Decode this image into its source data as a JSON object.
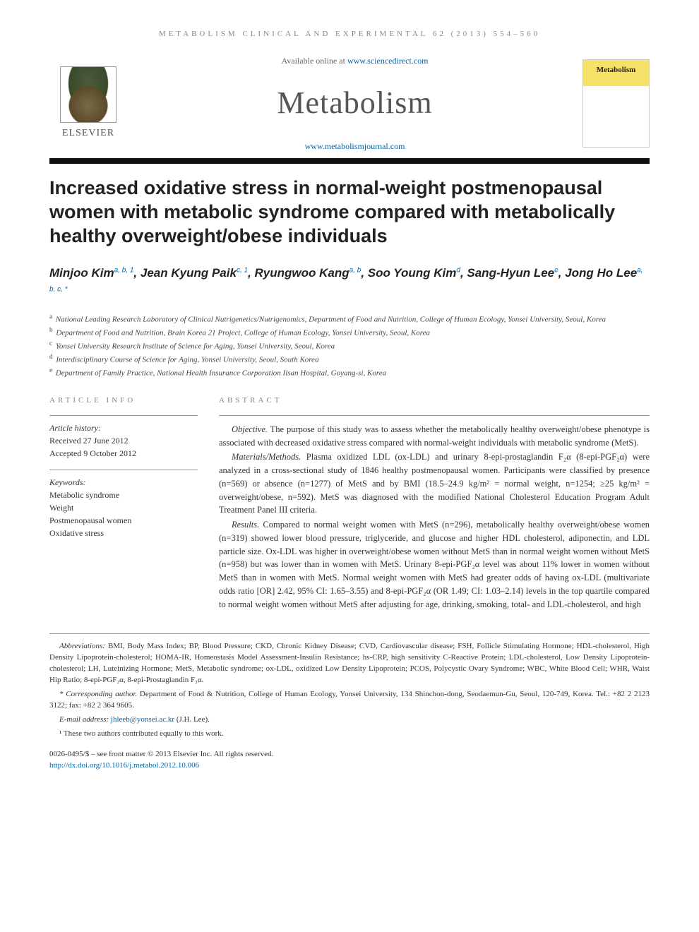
{
  "running_head": "METABOLISM CLINICAL AND EXPERIMENTAL 62 (2013) 554–560",
  "header": {
    "publisher_logo_text": "ELSEVIER",
    "available_prefix": "Available online at ",
    "available_url": "www.sciencedirect.com",
    "journal_name": "Metabolism",
    "journal_url": "www.metabolismjournal.com",
    "cover_label": "Metabolism"
  },
  "article": {
    "title": "Increased oxidative stress in normal-weight postmenopausal women with metabolic syndrome compared with metabolically healthy overweight/obese individuals",
    "authors": [
      {
        "name": "Minjoo Kim",
        "marks": "a, b, 1"
      },
      {
        "name": "Jean Kyung Paik",
        "marks": "c, 1"
      },
      {
        "name": "Ryungwoo Kang",
        "marks": "a, b"
      },
      {
        "name": "Soo Young Kim",
        "marks": "d"
      },
      {
        "name": "Sang-Hyun Lee",
        "marks": "e"
      },
      {
        "name": "Jong Ho Lee",
        "marks": "a, b, c, *"
      }
    ],
    "affiliations": [
      {
        "key": "a",
        "text": "National Leading Research Laboratory of Clinical Nutrigenetics/Nutrigenomics, Department of Food and Nutrition, College of Human Ecology, Yonsei University, Seoul, Korea"
      },
      {
        "key": "b",
        "text": "Department of Food and Nutrition, Brain Korea 21 Project, College of Human Ecology, Yonsei University, Seoul, Korea"
      },
      {
        "key": "c",
        "text": "Yonsei University Research Institute of Science for Aging, Yonsei University, Seoul, Korea"
      },
      {
        "key": "d",
        "text": "Interdisciplinary Course of Science for Aging, Yonsei University, Seoul, South Korea"
      },
      {
        "key": "e",
        "text": "Department of Family Practice, National Health Insurance Corporation Ilsan Hospital, Goyang-si, Korea"
      }
    ]
  },
  "info": {
    "heading": "ARTICLE INFO",
    "history_label": "Article history:",
    "received": "Received 27 June 2012",
    "accepted": "Accepted 9 October 2012",
    "keywords_label": "Keywords:",
    "keywords": [
      "Metabolic syndrome",
      "Weight",
      "Postmenopausal women",
      "Oxidative stress"
    ]
  },
  "abstract": {
    "heading": "ABSTRACT",
    "objective_label": "Objective.",
    "objective": "The purpose of this study was to assess whether the metabolically healthy overweight/obese phenotype is associated with decreased oxidative stress compared with normal-weight individuals with metabolic syndrome (MetS).",
    "methods_label": "Materials/Methods.",
    "methods": "Plasma oxidized LDL (ox-LDL) and urinary 8-epi-prostaglandin F₂α (8-epi-PGF₂α) were analyzed in a cross-sectional study of 1846 healthy postmenopausal women. Participants were classified by presence (n=569) or absence (n=1277) of MetS and by BMI (18.5–24.9 kg/m² = normal weight, n=1254; ≥25 kg/m² = overweight/obese, n=592). MetS was diagnosed with the modified National Cholesterol Education Program Adult Treatment Panel III criteria.",
    "results_label": "Results.",
    "results": "Compared to normal weight women with MetS (n=296), metabolically healthy overweight/obese women (n=319) showed lower blood pressure, triglyceride, and glucose and higher HDL cholesterol, adiponectin, and LDL particle size. Ox-LDL was higher in overweight/obese women without MetS than in normal weight women without MetS (n=958) but was lower than in women with MetS. Urinary 8-epi-PGF₂α level was about 11% lower in women without MetS than in women with MetS. Normal weight women with MetS had greater odds of having ox-LDL (multivariate odds ratio [OR] 2.42, 95% CI: 1.65–3.55) and 8-epi-PGF₂α (OR 1.49; CI: 1.03–2.14) levels in the top quartile compared to normal weight women without MetS after adjusting for age, drinking, smoking, total- and LDL-cholesterol, and high"
  },
  "footnotes": {
    "abbrev_label": "Abbreviations:",
    "abbrev": "BMI, Body Mass Index; BP, Blood Pressure; CKD, Chronic Kidney Disease; CVD, Cardiovascular disease; FSH, Follicle Stimulating Hormone; HDL-cholesterol, High Density Lipoprotein-cholesterol; HOMA-IR, Homeostasis Model Assessment-Insulin Resistance; hs-CRP, high sensitivity C-Reactive Protein; LDL-cholesterol, Low Density Lipoprotein-cholesterol; LH, Luteinizing Hormone; MetS, Metabolic syndrome; ox-LDL, oxidized Low Density Lipoprotein; PCOS, Polycystic Ovary Syndrome; WBC, White Blood Cell; WHR, Waist Hip Ratio; 8-epi-PGF₂α, 8-epi-Prostaglandin F₂α.",
    "corr_label": "* Corresponding author.",
    "corr": "Department of Food & Nutrition, College of Human Ecology, Yonsei University, 134 Shinchon-dong, Seodaemun-Gu, Seoul, 120-749, Korea. Tel.: +82 2 2123 3122; fax: +82 2 364 9605.",
    "email_label": "E-mail address:",
    "email": "jhleeb@yonsei.ac.kr",
    "email_who": "(J.H. Lee).",
    "equal": "¹ These two authors contributed equally to this work."
  },
  "doi": {
    "issn": "0026-0495/$ – see front matter © 2013 Elsevier Inc. All rights reserved.",
    "url": "http://dx.doi.org/10.1016/j.metabol.2012.10.006"
  },
  "colors": {
    "link": "#0066aa",
    "text": "#333333",
    "rule_dark": "#111111",
    "rule_thin": "#999999",
    "muted": "#888888"
  }
}
